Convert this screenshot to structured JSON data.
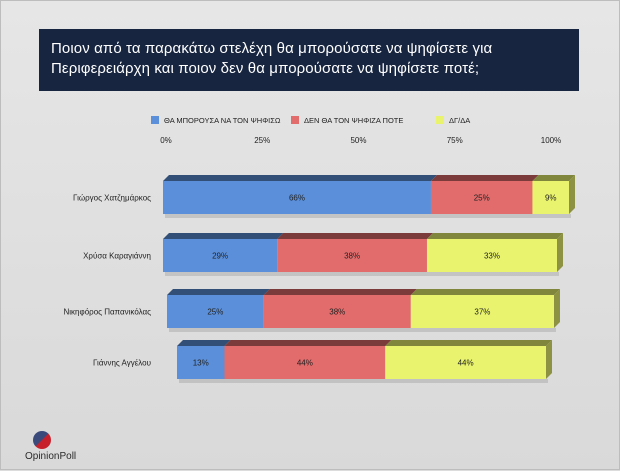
{
  "title": {
    "line1": "Ποιον από τα παρακάτω στελέχη θα μπορούσατε να ψηφίσετε για",
    "line2": "Περιφερειάρχη και ποιον δεν θα μπορούσατε να ψηφίσετε ποτέ;"
  },
  "logo_text": "OpinionPoll",
  "colors": {
    "series0": "#5b8fd9",
    "series1": "#e26b6b",
    "series2": "#e9f36d"
  },
  "chart_data": {
    "type": "bar",
    "orientation": "horizontal",
    "stacked": true,
    "categories": [
      "Γιώργος Χατζημάρκος",
      "Χρύσα Καραγιάννη",
      "Νικηφόρος Παπανικόλας",
      "Γιάννης Αγγέλου"
    ],
    "series": [
      {
        "name": "ΘΑ ΜΠΟΡΟΥΣΑ ΝΑ ΤΟΝ ΨΗΦΙΣΩ",
        "values": [
          66,
          29,
          25,
          13
        ]
      },
      {
        "name": "ΔΕΝ ΘΑ ΤΟΝ ΨΗΦΙΖΑ ΠΟΤΕ",
        "values": [
          25,
          38,
          38,
          44
        ]
      },
      {
        "name": "ΔΓ/ΔΑ",
        "values": [
          9,
          33,
          37,
          44
        ]
      }
    ],
    "xticks": [
      "0%",
      "25%",
      "50%",
      "75%",
      "100%"
    ],
    "xlim": [
      0,
      100
    ],
    "value_suffix": "%",
    "legend_position": "top",
    "grid": false
  }
}
